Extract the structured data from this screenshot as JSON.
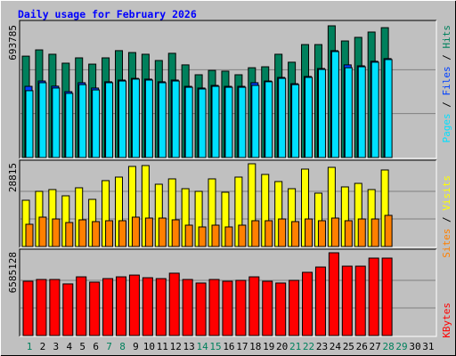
{
  "chart_data": [
    {
      "type": "bar",
      "title": "Daily usage for February 2026",
      "legend_separator": "/",
      "ylim": [
        0,
        693785
      ],
      "yticks": [
        693785
      ],
      "grid": true,
      "series": [
        {
          "name": "Hits",
          "color": "#00805c",
          "values": [
            534000,
            567000,
            544000,
            497000,
            525000,
            492000,
            525000,
            563000,
            553000,
            544000,
            511000,
            549000,
            488000,
            436000,
            459000,
            455000,
            436000,
            473000,
            478000,
            544000,
            502000,
            595000,
            595000,
            693785,
            614000,
            633000,
            661000,
            684000,
            null,
            null,
            null
          ]
        },
        {
          "name": "Files",
          "color": "#0040ff",
          "values": [
            375000,
            403000,
            376000,
            347000,
            394000,
            366000,
            399000,
            408000,
            417000,
            413000,
            399000,
            408000,
            375000,
            366000,
            380000,
            375000,
            375000,
            394000,
            403000,
            422000,
            389000,
            427000,
            469000,
            563000,
            488000,
            483000,
            507000,
            521000,
            null,
            null,
            null
          ]
        },
        {
          "name": "Pages",
          "color": "#00e0ff",
          "values": [
            352000,
            394000,
            366000,
            338000,
            384000,
            356000,
            394000,
            403000,
            413000,
            408000,
            394000,
            403000,
            370000,
            361000,
            375000,
            370000,
            370000,
            380000,
            399000,
            417000,
            384000,
            422000,
            464000,
            558000,
            473000,
            478000,
            502000,
            516000,
            null,
            null,
            null
          ]
        }
      ]
    },
    {
      "type": "bar",
      "ylim": [
        0,
        28815
      ],
      "yticks": [
        28815
      ],
      "grid": true,
      "series": [
        {
          "name": "Visits",
          "color": "#ffff00",
          "values": [
            16110,
            19210,
            19830,
            17660,
            20450,
            16420,
            22940,
            24170,
            27890,
            28190,
            21690,
            23550,
            20140,
            19210,
            23550,
            18900,
            24170,
            28815,
            25100,
            22620,
            20140,
            26960,
            18590,
            27570,
            20760,
            21990,
            19830,
            26650,
            null,
            null,
            null
          ]
        },
        {
          "name": "Sites",
          "color": "#ff8000",
          "values": [
            7750,
            10230,
            9600,
            8360,
            9300,
            8680,
            8990,
            8990,
            10230,
            9910,
            9910,
            9300,
            7440,
            6820,
            7440,
            6820,
            7440,
            8990,
            8990,
            9600,
            8680,
            9600,
            8990,
            9910,
            8990,
            9600,
            9600,
            10850,
            null,
            null,
            null
          ]
        }
      ]
    },
    {
      "type": "bar",
      "ylim": [
        0,
        6585128
      ],
      "yticks": [
        6585128
      ],
      "grid": true,
      "categories": [
        "1",
        "2",
        "3",
        "4",
        "5",
        "6",
        "7",
        "8",
        "9",
        "10",
        "11",
        "12",
        "13",
        "14",
        "15",
        "16",
        "17",
        "18",
        "19",
        "20",
        "21",
        "22",
        "23",
        "24",
        "25",
        "26",
        "27",
        "28",
        "29",
        "30",
        "31"
      ],
      "category_colors": [
        "#00805c",
        "#000000",
        "#000000",
        "#000000",
        "#000000",
        "#000000",
        "#00805c",
        "#00805c",
        "#000000",
        "#000000",
        "#000000",
        "#000000",
        "#000000",
        "#00805c",
        "#00805c",
        "#000000",
        "#000000",
        "#000000",
        "#000000",
        "#000000",
        "#00805c",
        "#00805c",
        "#000000",
        "#000000",
        "#000000",
        "#000000",
        "#000000",
        "#00805c",
        "#00805c",
        "#000000",
        "#000000"
      ],
      "series": [
        {
          "name": "KBytes",
          "color": "#ff0000",
          "values": [
            4320000,
            4460000,
            4460000,
            4110000,
            4670000,
            4250000,
            4530000,
            4670000,
            4810000,
            4600000,
            4530000,
            4960000,
            4460000,
            4180000,
            4460000,
            4320000,
            4390000,
            4670000,
            4320000,
            4180000,
            4390000,
            5030000,
            5450000,
            6585128,
            5520000,
            5520000,
            6160000,
            6160000,
            null,
            null,
            null
          ]
        }
      ]
    }
  ]
}
